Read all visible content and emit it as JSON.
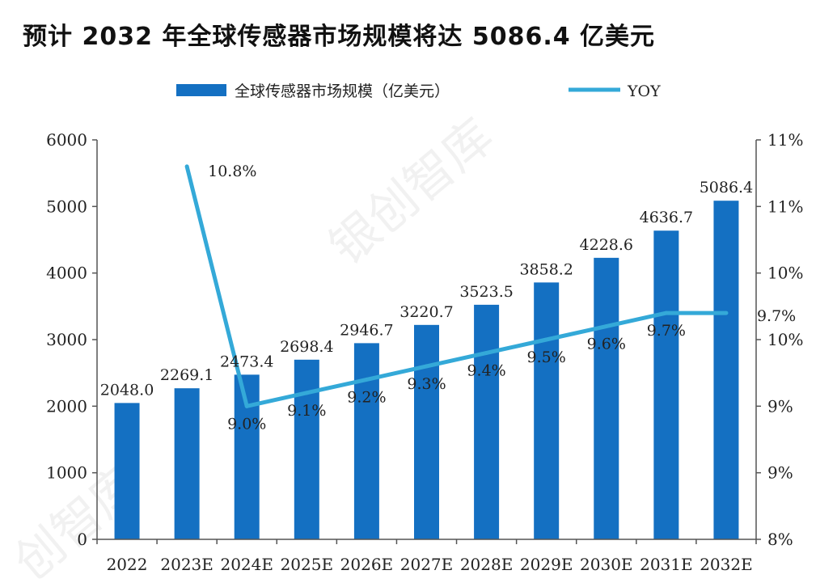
{
  "title": "预计 2032 年全球传感器市场规模将达 5086.4 亿美元",
  "colors": {
    "bar": "#1470c2",
    "line": "#34a9d8",
    "axis": "#555555",
    "text": "#222222"
  },
  "chart_data": {
    "type": "bar",
    "categories": [
      "2022",
      "2023E",
      "2024E",
      "2025E",
      "2026E",
      "2027E",
      "2028E",
      "2029E",
      "2030E",
      "2031E",
      "2032E"
    ],
    "series": [
      {
        "name": "全球传感器市场规模（亿美元）",
        "type": "bar",
        "axis": "left",
        "values": [
          2048.0,
          2269.1,
          2473.4,
          2698.4,
          2946.7,
          3220.7,
          3523.5,
          3858.2,
          4228.6,
          4636.7,
          5086.4
        ],
        "labels": [
          "2048.0",
          "2269.1",
          "2473.4",
          "2698.4",
          "2946.7",
          "3220.7",
          "3523.5",
          "3858.2",
          "4228.6",
          "4636.7",
          "5086.4"
        ]
      },
      {
        "name": "YOY",
        "type": "line",
        "axis": "right",
        "values": [
          null,
          10.8,
          9.0,
          9.1,
          9.2,
          9.3,
          9.4,
          9.5,
          9.6,
          9.7,
          9.7
        ],
        "labels": [
          "",
          "10.8%",
          "9.0%",
          "9.1%",
          "9.2%",
          "9.3%",
          "9.4%",
          "9.5%",
          "9.6%",
          "9.7%",
          "9.7%"
        ]
      }
    ],
    "y_left": {
      "ylim": [
        0,
        6000
      ],
      "ticks": [
        "0",
        "1000",
        "2000",
        "3000",
        "4000",
        "5000",
        "6000"
      ]
    },
    "y_right": {
      "ylim": [
        8,
        11
      ],
      "ticks": [
        "8%",
        "9%",
        "9%",
        "10%",
        "10%",
        "11%",
        "11%"
      ]
    },
    "legend_position": "top",
    "grid": false
  },
  "watermark": [
    "银创智库",
    "创智库"
  ]
}
